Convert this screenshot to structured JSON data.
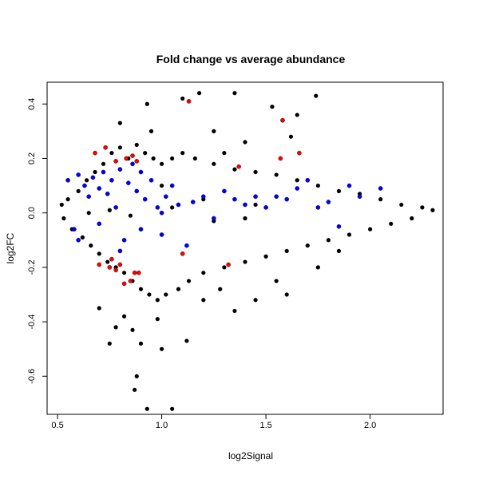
{
  "chart_data": {
    "type": "scatter",
    "title": "Fold change vs average abundance",
    "xlabel": "log2Signal",
    "ylabel": "log2FC",
    "xlim": [
      0.45,
      2.35
    ],
    "ylim": [
      -0.74,
      0.48
    ],
    "x_ticks": [
      {
        "value": 0.5,
        "label": "0.5"
      },
      {
        "value": 1.0,
        "label": "1.0"
      },
      {
        "value": 1.5,
        "label": "1.5"
      },
      {
        "value": 2.0,
        "label": "2.0"
      }
    ],
    "y_ticks": [
      {
        "value": -0.6,
        "label": "-0.6"
      },
      {
        "value": -0.4,
        "label": "-0.4"
      },
      {
        "value": -0.2,
        "label": "-0.2"
      },
      {
        "value": 0.0,
        "label": "0.0"
      },
      {
        "value": 0.2,
        "label": "0.2"
      },
      {
        "value": 0.4,
        "label": "0.4"
      }
    ],
    "grid": false,
    "legend": "none",
    "colors": {
      "all": "#000000",
      "highlight_blue": "#0000ff",
      "highlight_red": "#ff0000"
    },
    "series": [
      {
        "color": "#000000",
        "points": [
          [
            0.52,
            0.03
          ],
          [
            0.53,
            -0.02
          ],
          [
            0.55,
            0.05
          ],
          [
            0.57,
            -0.06
          ],
          [
            0.6,
            0.08
          ],
          [
            0.62,
            -0.09
          ],
          [
            0.64,
            0.12
          ],
          [
            0.66,
            -0.12
          ],
          [
            0.68,
            0.15
          ],
          [
            0.7,
            -0.15
          ],
          [
            0.72,
            0.18
          ],
          [
            0.74,
            -0.18
          ],
          [
            0.76,
            0.22
          ],
          [
            0.78,
            -0.2
          ],
          [
            0.8,
            0.24
          ],
          [
            0.82,
            -0.22
          ],
          [
            0.84,
            0.2
          ],
          [
            0.86,
            -0.25
          ],
          [
            0.88,
            0.25
          ],
          [
            0.9,
            -0.28
          ],
          [
            0.92,
            0.22
          ],
          [
            0.94,
            -0.3
          ],
          [
            0.96,
            0.2
          ],
          [
            0.98,
            -0.32
          ],
          [
            1.0,
            0.18
          ],
          [
            1.02,
            -0.3
          ],
          [
            1.05,
            0.2
          ],
          [
            1.08,
            -0.28
          ],
          [
            1.1,
            0.22
          ],
          [
            1.13,
            -0.25
          ],
          [
            1.16,
            0.2
          ],
          [
            1.2,
            -0.22
          ],
          [
            1.25,
            0.18
          ],
          [
            1.3,
            -0.2
          ],
          [
            1.35,
            0.16
          ],
          [
            1.4,
            -0.18
          ],
          [
            1.45,
            0.15
          ],
          [
            1.5,
            -0.16
          ],
          [
            1.55,
            0.14
          ],
          [
            1.6,
            -0.14
          ],
          [
            1.65,
            0.12
          ],
          [
            1.7,
            -0.12
          ],
          [
            1.75,
            0.1
          ],
          [
            1.8,
            -0.1
          ],
          [
            1.85,
            0.08
          ],
          [
            1.9,
            -0.08
          ],
          [
            1.95,
            0.07
          ],
          [
            2.0,
            -0.06
          ],
          [
            2.05,
            0.05
          ],
          [
            2.1,
            -0.04
          ],
          [
            2.15,
            0.03
          ],
          [
            2.2,
            -0.02
          ],
          [
            2.25,
            0.02
          ],
          [
            2.3,
            0.01
          ],
          [
            0.7,
            -0.35
          ],
          [
            0.75,
            -0.48
          ],
          [
            0.78,
            -0.42
          ],
          [
            0.82,
            -0.38
          ],
          [
            0.86,
            -0.43
          ],
          [
            0.88,
            -0.6
          ],
          [
            0.87,
            -0.65
          ],
          [
            0.9,
            -0.48
          ],
          [
            0.93,
            -0.72
          ],
          [
            1.0,
            -0.5
          ],
          [
            1.05,
            -0.72
          ],
          [
            1.12,
            -0.47
          ],
          [
            0.98,
            -0.39
          ],
          [
            1.2,
            -0.32
          ],
          [
            0.93,
            0.4
          ],
          [
            1.1,
            0.42
          ],
          [
            1.18,
            0.44
          ],
          [
            1.35,
            0.44
          ],
          [
            1.53,
            0.39
          ],
          [
            1.74,
            0.43
          ],
          [
            1.58,
            0.34
          ],
          [
            1.62,
            0.28
          ],
          [
            1.25,
            0.3
          ],
          [
            1.4,
            0.26
          ],
          [
            1.65,
            0.36
          ],
          [
            0.8,
            0.33
          ],
          [
            0.95,
            0.3
          ],
          [
            1.3,
            0.22
          ],
          [
            1.0,
            0.1
          ],
          [
            1.2,
            0.05
          ],
          [
            1.4,
            -0.02
          ],
          [
            0.65,
            0.0
          ],
          [
            0.75,
            0.01
          ],
          [
            0.85,
            -0.01
          ],
          [
            1.05,
            0.02
          ],
          [
            1.25,
            -0.03
          ],
          [
            1.45,
            0.03
          ],
          [
            1.6,
            -0.3
          ],
          [
            1.55,
            -0.25
          ],
          [
            1.45,
            -0.32
          ],
          [
            1.35,
            -0.36
          ],
          [
            1.28,
            -0.28
          ],
          [
            1.75,
            -0.2
          ],
          [
            1.85,
            -0.14
          ]
        ]
      },
      {
        "color": "#0000ff",
        "points": [
          [
            0.55,
            0.12
          ],
          [
            0.58,
            -0.06
          ],
          [
            0.6,
            0.14
          ],
          [
            0.63,
            0.1
          ],
          [
            0.65,
            0.06
          ],
          [
            0.67,
            0.13
          ],
          [
            0.7,
            0.09
          ],
          [
            0.72,
            0.15
          ],
          [
            0.74,
            0.07
          ],
          [
            0.76,
            0.12
          ],
          [
            0.78,
            0.02
          ],
          [
            0.8,
            0.16
          ],
          [
            0.82,
            -0.1
          ],
          [
            0.84,
            0.11
          ],
          [
            0.86,
            0.18
          ],
          [
            0.88,
            0.08
          ],
          [
            0.9,
            0.15
          ],
          [
            0.92,
            0.05
          ],
          [
            0.95,
            0.12
          ],
          [
            0.98,
            0.02
          ],
          [
            1.0,
            -0.08
          ],
          [
            1.02,
            0.06
          ],
          [
            1.05,
            0.1
          ],
          [
            1.08,
            0.03
          ],
          [
            1.12,
            -0.12
          ],
          [
            1.15,
            0.04
          ],
          [
            1.2,
            0.06
          ],
          [
            1.25,
            -0.02
          ],
          [
            1.3,
            0.08
          ],
          [
            1.35,
            0.05
          ],
          [
            1.4,
            0.03
          ],
          [
            1.45,
            0.06
          ],
          [
            1.5,
            0.02
          ],
          [
            1.55,
            0.06
          ],
          [
            1.6,
            0.05
          ],
          [
            1.65,
            0.09
          ],
          [
            1.7,
            0.12
          ],
          [
            1.75,
            0.02
          ],
          [
            1.8,
            0.04
          ],
          [
            1.85,
            -0.05
          ],
          [
            1.9,
            0.1
          ],
          [
            1.95,
            0.06
          ],
          [
            2.05,
            0.09
          ],
          [
            0.6,
            -0.1
          ],
          [
            0.7,
            -0.04
          ],
          [
            0.8,
            -0.14
          ],
          [
            0.9,
            -0.06
          ],
          [
            1.0,
            0.0
          ]
        ]
      },
      {
        "color": "#ff0000",
        "points": [
          [
            0.68,
            0.22
          ],
          [
            0.73,
            0.24
          ],
          [
            0.78,
            0.19
          ],
          [
            0.83,
            0.2
          ],
          [
            0.86,
            0.21
          ],
          [
            0.88,
            0.19
          ],
          [
            1.13,
            0.41
          ],
          [
            1.37,
            0.17
          ],
          [
            1.58,
            0.34
          ],
          [
            1.57,
            0.2
          ],
          [
            1.66,
            0.22
          ],
          [
            0.7,
            -0.19
          ],
          [
            0.75,
            -0.2
          ],
          [
            0.78,
            -0.21
          ],
          [
            0.8,
            -0.19
          ],
          [
            0.82,
            -0.26
          ],
          [
            0.85,
            -0.25
          ],
          [
            0.87,
            -0.22
          ],
          [
            0.89,
            -0.22
          ],
          [
            1.1,
            -0.15
          ],
          [
            1.32,
            -0.19
          ],
          [
            0.76,
            -0.17
          ]
        ]
      }
    ]
  }
}
